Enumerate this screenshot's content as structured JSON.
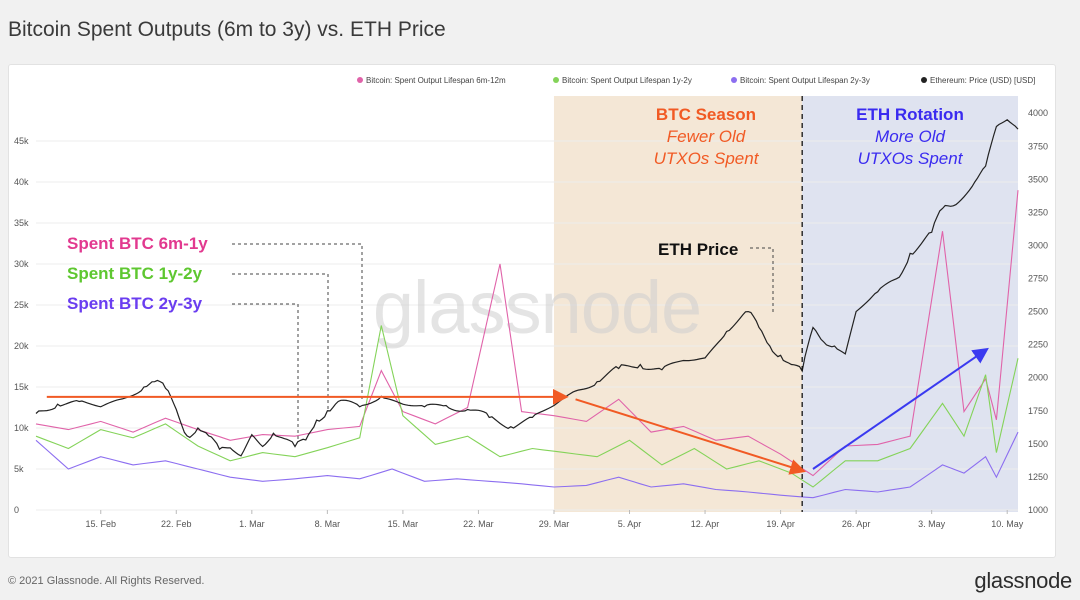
{
  "page": {
    "title": "Bitcoin Spent Outputs (6m to 3y) vs. ETH Price",
    "copyright": "© 2021 Glassnode. All Rights Reserved.",
    "logo": "glassnode",
    "watermark": "glassnode"
  },
  "chart_data": {
    "type": "line",
    "title": "Bitcoin Spent Outputs (6m to 3y) vs. ETH Price",
    "x_range": [
      "2021-02-09",
      "2021-05-11"
    ],
    "x_ticks": [
      "15. Feb",
      "22. Feb",
      "1. Mar",
      "8. Mar",
      "15. Mar",
      "22. Mar",
      "29. Mar",
      "5. Apr",
      "12. Apr",
      "19. Apr",
      "26. Apr",
      "3. May",
      "10. May"
    ],
    "x_tick_dates": [
      "2021-02-15",
      "2021-02-22",
      "2021-03-01",
      "2021-03-08",
      "2021-03-15",
      "2021-03-22",
      "2021-03-29",
      "2021-04-05",
      "2021-04-12",
      "2021-04-19",
      "2021-04-26",
      "2021-05-03",
      "2021-05-10"
    ],
    "y_left": {
      "range": [
        0,
        50000
      ],
      "ticks": [
        0,
        5000,
        10000,
        15000,
        20000,
        25000,
        30000,
        35000,
        40000,
        45000
      ],
      "tick_labels": [
        "0",
        "5k",
        "10k",
        "15k",
        "20k",
        "25k",
        "30k",
        "35k",
        "40k",
        "45k"
      ]
    },
    "y_right": {
      "range": [
        1000,
        4100
      ],
      "ticks": [
        1000,
        1250,
        1500,
        1750,
        2000,
        2250,
        2500,
        2750,
        3000,
        3250,
        3500,
        3750,
        4000
      ],
      "tick_labels": [
        "1000",
        "1250",
        "1500",
        "1750",
        "2000",
        "2250",
        "2500",
        "2750",
        "3000",
        "3250",
        "3500",
        "3750",
        "4000"
      ]
    },
    "grid": true,
    "legend_position": "top-right",
    "series": [
      {
        "name": "Bitcoin: Spent Output Lifespan 6m-12m",
        "color": "#e063a9",
        "axis": "left",
        "points": [
          [
            "2021-02-09",
            10500
          ],
          [
            "2021-02-12",
            9800
          ],
          [
            "2021-02-15",
            10800
          ],
          [
            "2021-02-18",
            9500
          ],
          [
            "2021-02-21",
            11200
          ],
          [
            "2021-02-24",
            9800
          ],
          [
            "2021-02-27",
            8500
          ],
          [
            "2021-03-02",
            9200
          ],
          [
            "2021-03-05",
            9000
          ],
          [
            "2021-03-08",
            9800
          ],
          [
            "2021-03-11",
            10200
          ],
          [
            "2021-03-13",
            17000
          ],
          [
            "2021-03-15",
            12000
          ],
          [
            "2021-03-18",
            10500
          ],
          [
            "2021-03-21",
            12500
          ],
          [
            "2021-03-24",
            30000
          ],
          [
            "2021-03-26",
            12000
          ],
          [
            "2021-03-29",
            11500
          ],
          [
            "2021-04-01",
            10800
          ],
          [
            "2021-04-04",
            13500
          ],
          [
            "2021-04-07",
            9500
          ],
          [
            "2021-04-10",
            10200
          ],
          [
            "2021-04-13",
            8500
          ],
          [
            "2021-04-16",
            9000
          ],
          [
            "2021-04-19",
            6800
          ],
          [
            "2021-04-22",
            4200
          ],
          [
            "2021-04-25",
            7800
          ],
          [
            "2021-04-28",
            8000
          ],
          [
            "2021-05-01",
            9000
          ],
          [
            "2021-05-04",
            34000
          ],
          [
            "2021-05-06",
            12000
          ],
          [
            "2021-05-08",
            16000
          ],
          [
            "2021-05-09",
            11000
          ],
          [
            "2021-05-11",
            39000
          ]
        ]
      },
      {
        "name": "Bitcoin: Spent Output Lifespan 1y-2y",
        "color": "#84d359",
        "axis": "left",
        "points": [
          [
            "2021-02-09",
            9000
          ],
          [
            "2021-02-12",
            7500
          ],
          [
            "2021-02-15",
            9800
          ],
          [
            "2021-02-18",
            8800
          ],
          [
            "2021-02-21",
            10500
          ],
          [
            "2021-02-24",
            7800
          ],
          [
            "2021-02-27",
            6000
          ],
          [
            "2021-03-02",
            7000
          ],
          [
            "2021-03-05",
            6500
          ],
          [
            "2021-03-08",
            7600
          ],
          [
            "2021-03-11",
            8800
          ],
          [
            "2021-03-13",
            22500
          ],
          [
            "2021-03-15",
            11500
          ],
          [
            "2021-03-18",
            8000
          ],
          [
            "2021-03-21",
            9000
          ],
          [
            "2021-03-24",
            6500
          ],
          [
            "2021-03-27",
            7500
          ],
          [
            "2021-03-30",
            7000
          ],
          [
            "2021-04-02",
            6500
          ],
          [
            "2021-04-05",
            8500
          ],
          [
            "2021-04-08",
            5500
          ],
          [
            "2021-04-11",
            7500
          ],
          [
            "2021-04-14",
            5000
          ],
          [
            "2021-04-17",
            6000
          ],
          [
            "2021-04-20",
            4500
          ],
          [
            "2021-04-22",
            2800
          ],
          [
            "2021-04-25",
            6000
          ],
          [
            "2021-04-28",
            6000
          ],
          [
            "2021-05-01",
            7500
          ],
          [
            "2021-05-04",
            13000
          ],
          [
            "2021-05-06",
            9000
          ],
          [
            "2021-05-08",
            16500
          ],
          [
            "2021-05-09",
            7000
          ],
          [
            "2021-05-11",
            18500
          ]
        ]
      },
      {
        "name": "Bitcoin: Spent Output Lifespan 2y-3y",
        "color": "#8c6ef0",
        "axis": "left",
        "points": [
          [
            "2021-02-09",
            8500
          ],
          [
            "2021-02-12",
            5000
          ],
          [
            "2021-02-15",
            6500
          ],
          [
            "2021-02-18",
            5500
          ],
          [
            "2021-02-21",
            6000
          ],
          [
            "2021-02-24",
            5000
          ],
          [
            "2021-02-27",
            4000
          ],
          [
            "2021-03-02",
            3500
          ],
          [
            "2021-03-05",
            3800
          ],
          [
            "2021-03-08",
            4200
          ],
          [
            "2021-03-11",
            3800
          ],
          [
            "2021-03-14",
            5000
          ],
          [
            "2021-03-17",
            3500
          ],
          [
            "2021-03-20",
            3800
          ],
          [
            "2021-03-23",
            3500
          ],
          [
            "2021-03-26",
            3200
          ],
          [
            "2021-03-29",
            2800
          ],
          [
            "2021-04-01",
            3000
          ],
          [
            "2021-04-04",
            4000
          ],
          [
            "2021-04-07",
            2800
          ],
          [
            "2021-04-10",
            3200
          ],
          [
            "2021-04-13",
            2500
          ],
          [
            "2021-04-16",
            2200
          ],
          [
            "2021-04-19",
            1800
          ],
          [
            "2021-04-22",
            1500
          ],
          [
            "2021-04-25",
            2500
          ],
          [
            "2021-04-28",
            2200
          ],
          [
            "2021-05-01",
            2800
          ],
          [
            "2021-05-04",
            5500
          ],
          [
            "2021-05-06",
            4500
          ],
          [
            "2021-05-08",
            6500
          ],
          [
            "2021-05-09",
            4000
          ],
          [
            "2021-05-11",
            9500
          ]
        ]
      },
      {
        "name": "Ethereum: Price (USD) [USD]",
        "color": "#222222",
        "axis": "right",
        "points": [
          [
            "2021-02-09",
            1730
          ],
          [
            "2021-02-11",
            1800
          ],
          [
            "2021-02-13",
            1820
          ],
          [
            "2021-02-15",
            1780
          ],
          [
            "2021-02-17",
            1840
          ],
          [
            "2021-02-19",
            1930
          ],
          [
            "2021-02-20",
            1970
          ],
          [
            "2021-02-21",
            1920
          ],
          [
            "2021-02-22",
            1760
          ],
          [
            "2021-02-23",
            1560
          ],
          [
            "2021-02-24",
            1620
          ],
          [
            "2021-02-25",
            1560
          ],
          [
            "2021-02-26",
            1460
          ],
          [
            "2021-02-27",
            1470
          ],
          [
            "2021-02-28",
            1410
          ],
          [
            "2021-03-01",
            1570
          ],
          [
            "2021-03-02",
            1480
          ],
          [
            "2021-03-03",
            1580
          ],
          [
            "2021-03-04",
            1540
          ],
          [
            "2021-03-05",
            1480
          ],
          [
            "2021-03-06",
            1530
          ],
          [
            "2021-03-07",
            1680
          ],
          [
            "2021-03-08",
            1750
          ],
          [
            "2021-03-09",
            1820
          ],
          [
            "2021-03-11",
            1780
          ],
          [
            "2021-03-13",
            1860
          ],
          [
            "2021-03-15",
            1800
          ],
          [
            "2021-03-17",
            1780
          ],
          [
            "2021-03-19",
            1790
          ],
          [
            "2021-03-21",
            1760
          ],
          [
            "2021-03-23",
            1700
          ],
          [
            "2021-03-25",
            1630
          ],
          [
            "2021-03-27",
            1700
          ],
          [
            "2021-03-29",
            1790
          ],
          [
            "2021-03-31",
            1900
          ],
          [
            "2021-04-02",
            1970
          ],
          [
            "2021-04-04",
            2070
          ],
          [
            "2021-04-06",
            2100
          ],
          [
            "2021-04-08",
            2060
          ],
          [
            "2021-04-10",
            2130
          ],
          [
            "2021-04-12",
            2150
          ],
          [
            "2021-04-14",
            2350
          ],
          [
            "2021-04-16",
            2500
          ],
          [
            "2021-04-17",
            2380
          ],
          [
            "2021-04-18",
            2240
          ],
          [
            "2021-04-19",
            2170
          ],
          [
            "2021-04-20",
            2100
          ],
          [
            "2021-04-21",
            2050
          ],
          [
            "2021-04-22",
            2380
          ],
          [
            "2021-04-23",
            2270
          ],
          [
            "2021-04-24",
            2240
          ],
          [
            "2021-04-25",
            2180
          ],
          [
            "2021-04-26",
            2500
          ],
          [
            "2021-04-28",
            2650
          ],
          [
            "2021-04-30",
            2760
          ],
          [
            "2021-05-01",
            2940
          ],
          [
            "2021-05-03",
            3100
          ],
          [
            "2021-05-04",
            3280
          ],
          [
            "2021-05-05",
            3300
          ],
          [
            "2021-05-07",
            3480
          ],
          [
            "2021-05-08",
            3600
          ],
          [
            "2021-05-09",
            3900
          ],
          [
            "2021-05-10",
            3950
          ],
          [
            "2021-05-11",
            3880
          ]
        ]
      }
    ],
    "shaded_regions": [
      {
        "label": "BTC Season",
        "from": "2021-03-29",
        "to": "2021-04-21",
        "color": "#f4e7d6"
      },
      {
        "label": "ETH Rotation",
        "from": "2021-04-21",
        "to": "2021-05-11",
        "color": "#dfe3f0"
      }
    ],
    "vertical_markers": [
      "2021-04-21"
    ],
    "trend_arrows": [
      {
        "color": "#f15a24",
        "from": [
          "2021-02-10",
          13800
        ],
        "to": [
          "2021-03-30",
          13800
        ]
      },
      {
        "color": "#f15a24",
        "from": [
          "2021-03-31",
          13500
        ],
        "to": [
          "2021-04-21",
          4800
        ]
      },
      {
        "color": "#3a3af0",
        "from": [
          "2021-04-22",
          5000
        ],
        "to": [
          "2021-05-08",
          19500
        ]
      }
    ],
    "annotations": {
      "btc_season_title": "BTC Season",
      "btc_season_line1": "Fewer Old",
      "btc_season_line2": "UTXOs Spent",
      "eth_rotation_title": "ETH Rotation",
      "eth_rotation_line1": "More Old",
      "eth_rotation_line2": "UTXOs Spent",
      "eth_price_label": "ETH Price",
      "spent_6m_1y": "Spent BTC 6m-1y",
      "spent_1y_2y": "Spent BTC 1y-2y",
      "spent_2y_3y": "Spent BTC 2y-3y"
    }
  }
}
